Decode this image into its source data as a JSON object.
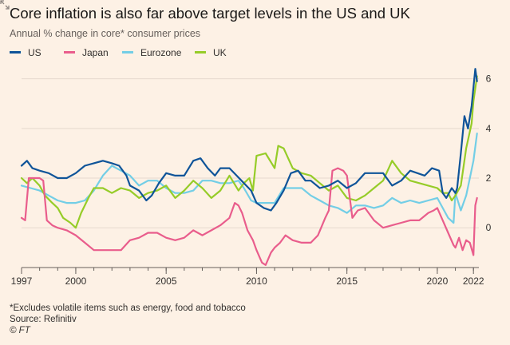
{
  "chart_data": {
    "type": "line",
    "title": "Core inflation is also far above target levels in the US and UK",
    "subtitle": "Annual % change in core* consumer prices",
    "xlabel": "",
    "ylabel": "",
    "xlim": [
      1997.0,
      2022.3
    ],
    "ylim": [
      -1.6,
      6.6
    ],
    "x_ticks": [
      1997,
      2000,
      2005,
      2010,
      2015,
      2020,
      2022
    ],
    "y_ticks": [
      0,
      2,
      4,
      6
    ],
    "y_axis_side": "right",
    "grid": true,
    "legend_position": "top-left",
    "series": [
      {
        "name": "US",
        "color": "#0f5499",
        "points": [
          [
            1997,
            2.5
          ],
          [
            1997.3,
            2.7
          ],
          [
            1997.6,
            2.4
          ],
          [
            1998,
            2.3
          ],
          [
            1998.5,
            2.2
          ],
          [
            1999,
            2.0
          ],
          [
            1999.5,
            2.0
          ],
          [
            2000,
            2.2
          ],
          [
            2000.5,
            2.5
          ],
          [
            2001,
            2.6
          ],
          [
            2001.5,
            2.7
          ],
          [
            2002,
            2.6
          ],
          [
            2002.4,
            2.5
          ],
          [
            2002.8,
            2.1
          ],
          [
            2003,
            1.7
          ],
          [
            2003.5,
            1.5
          ],
          [
            2003.9,
            1.1
          ],
          [
            2004.2,
            1.3
          ],
          [
            2004.6,
            1.8
          ],
          [
            2005,
            2.2
          ],
          [
            2005.5,
            2.1
          ],
          [
            2006,
            2.1
          ],
          [
            2006.5,
            2.7
          ],
          [
            2006.9,
            2.8
          ],
          [
            2007.3,
            2.4
          ],
          [
            2007.7,
            2.1
          ],
          [
            2008,
            2.4
          ],
          [
            2008.5,
            2.4
          ],
          [
            2008.9,
            2.1
          ],
          [
            2009.3,
            1.8
          ],
          [
            2009.7,
            1.5
          ],
          [
            2010,
            1.0
          ],
          [
            2010.4,
            0.8
          ],
          [
            2010.8,
            0.7
          ],
          [
            2011.1,
            1.0
          ],
          [
            2011.5,
            1.5
          ],
          [
            2011.9,
            2.2
          ],
          [
            2012.3,
            2.3
          ],
          [
            2012.7,
            1.9
          ],
          [
            2013,
            1.9
          ],
          [
            2013.5,
            1.6
          ],
          [
            2014,
            1.7
          ],
          [
            2014.5,
            1.9
          ],
          [
            2015,
            1.6
          ],
          [
            2015.5,
            1.8
          ],
          [
            2016,
            2.2
          ],
          [
            2016.5,
            2.2
          ],
          [
            2017,
            2.2
          ],
          [
            2017.5,
            1.7
          ],
          [
            2018,
            1.9
          ],
          [
            2018.5,
            2.3
          ],
          [
            2018.9,
            2.2
          ],
          [
            2019.3,
            2.1
          ],
          [
            2019.7,
            2.4
          ],
          [
            2020.1,
            2.3
          ],
          [
            2020.3,
            1.4
          ],
          [
            2020.5,
            1.2
          ],
          [
            2020.8,
            1.6
          ],
          [
            2021,
            1.4
          ],
          [
            2021.1,
            1.6
          ],
          [
            2021.3,
            3.0
          ],
          [
            2021.5,
            4.5
          ],
          [
            2021.7,
            4.0
          ],
          [
            2021.9,
            4.9
          ],
          [
            2022.1,
            6.4
          ],
          [
            2022.2,
            5.9
          ]
        ]
      },
      {
        "name": "Japan",
        "color": "#e95d8c",
        "points": [
          [
            1997,
            0.4
          ],
          [
            1997.2,
            0.3
          ],
          [
            1997.4,
            2.0
          ],
          [
            1997.7,
            2.0
          ],
          [
            1998,
            2.0
          ],
          [
            1998.2,
            1.9
          ],
          [
            1998.4,
            0.3
          ],
          [
            1998.7,
            0.1
          ],
          [
            1999,
            0.0
          ],
          [
            1999.5,
            -0.1
          ],
          [
            2000,
            -0.3
          ],
          [
            2000.5,
            -0.6
          ],
          [
            2001,
            -0.9
          ],
          [
            2001.5,
            -0.9
          ],
          [
            2002,
            -0.9
          ],
          [
            2002.5,
            -0.9
          ],
          [
            2003,
            -0.5
          ],
          [
            2003.5,
            -0.4
          ],
          [
            2004,
            -0.2
          ],
          [
            2004.5,
            -0.2
          ],
          [
            2005,
            -0.4
          ],
          [
            2005.5,
            -0.5
          ],
          [
            2006,
            -0.4
          ],
          [
            2006.5,
            -0.1
          ],
          [
            2007,
            -0.3
          ],
          [
            2007.5,
            -0.1
          ],
          [
            2008,
            0.1
          ],
          [
            2008.5,
            0.4
          ],
          [
            2008.8,
            1.0
          ],
          [
            2009,
            0.9
          ],
          [
            2009.2,
            0.6
          ],
          [
            2009.5,
            -0.1
          ],
          [
            2009.8,
            -0.5
          ],
          [
            2010,
            -0.9
          ],
          [
            2010.3,
            -1.4
          ],
          [
            2010.5,
            -1.5
          ],
          [
            2010.8,
            -1.0
          ],
          [
            2011,
            -0.8
          ],
          [
            2011.3,
            -0.6
          ],
          [
            2011.6,
            -0.3
          ],
          [
            2012,
            -0.5
          ],
          [
            2012.5,
            -0.6
          ],
          [
            2013,
            -0.6
          ],
          [
            2013.4,
            -0.3
          ],
          [
            2013.8,
            0.4
          ],
          [
            2014,
            0.7
          ],
          [
            2014.2,
            2.3
          ],
          [
            2014.5,
            2.4
          ],
          [
            2014.8,
            2.3
          ],
          [
            2015,
            2.1
          ],
          [
            2015.3,
            0.4
          ],
          [
            2015.6,
            0.7
          ],
          [
            2016,
            0.8
          ],
          [
            2016.5,
            0.3
          ],
          [
            2017,
            0.0
          ],
          [
            2017.5,
            0.1
          ],
          [
            2018,
            0.2
          ],
          [
            2018.5,
            0.3
          ],
          [
            2019,
            0.3
          ],
          [
            2019.5,
            0.6
          ],
          [
            2019.8,
            0.7
          ],
          [
            2020,
            0.8
          ],
          [
            2020.3,
            0.3
          ],
          [
            2020.6,
            -0.2
          ],
          [
            2020.9,
            -0.7
          ],
          [
            2021,
            -0.8
          ],
          [
            2021.2,
            -0.4
          ],
          [
            2021.4,
            -0.9
          ],
          [
            2021.6,
            -0.5
          ],
          [
            2021.8,
            -0.6
          ],
          [
            2022,
            -1.1
          ],
          [
            2022.1,
            0.9
          ],
          [
            2022.2,
            1.2
          ]
        ]
      },
      {
        "name": "Eurozone",
        "color": "#73cee6",
        "points": [
          [
            1997,
            1.7
          ],
          [
            1997.5,
            1.6
          ],
          [
            1998,
            1.5
          ],
          [
            1998.5,
            1.3
          ],
          [
            1999,
            1.1
          ],
          [
            1999.5,
            1.0
          ],
          [
            2000,
            1.0
          ],
          [
            2000.5,
            1.1
          ],
          [
            2001,
            1.5
          ],
          [
            2001.5,
            2.1
          ],
          [
            2002,
            2.5
          ],
          [
            2002.5,
            2.3
          ],
          [
            2003,
            2.1
          ],
          [
            2003.5,
            1.7
          ],
          [
            2004,
            1.9
          ],
          [
            2004.5,
            1.9
          ],
          [
            2005,
            1.6
          ],
          [
            2005.5,
            1.4
          ],
          [
            2006,
            1.4
          ],
          [
            2006.5,
            1.5
          ],
          [
            2007,
            1.9
          ],
          [
            2007.5,
            1.9
          ],
          [
            2008,
            1.8
          ],
          [
            2008.5,
            1.8
          ],
          [
            2009,
            1.9
          ],
          [
            2009.3,
            1.6
          ],
          [
            2009.7,
            1.1
          ],
          [
            2010,
            1.0
          ],
          [
            2010.5,
            1.0
          ],
          [
            2011,
            1.0
          ],
          [
            2011.5,
            1.6
          ],
          [
            2012,
            1.6
          ],
          [
            2012.5,
            1.6
          ],
          [
            2013,
            1.3
          ],
          [
            2013.5,
            1.1
          ],
          [
            2014,
            0.9
          ],
          [
            2014.5,
            0.8
          ],
          [
            2015,
            0.6
          ],
          [
            2015.5,
            0.9
          ],
          [
            2016,
            0.9
          ],
          [
            2016.5,
            0.8
          ],
          [
            2017,
            0.9
          ],
          [
            2017.5,
            1.2
          ],
          [
            2018,
            1.0
          ],
          [
            2018.5,
            1.1
          ],
          [
            2019,
            1.0
          ],
          [
            2019.5,
            1.1
          ],
          [
            2020,
            1.2
          ],
          [
            2020.3,
            0.8
          ],
          [
            2020.6,
            0.4
          ],
          [
            2020.9,
            0.2
          ],
          [
            2021,
            1.4
          ],
          [
            2021.3,
            0.7
          ],
          [
            2021.6,
            1.3
          ],
          [
            2021.8,
            2.0
          ],
          [
            2022,
            2.7
          ],
          [
            2022.2,
            3.8
          ]
        ]
      },
      {
        "name": "UK",
        "color": "#96cc28",
        "points": [
          [
            1997,
            2.0
          ],
          [
            1997.3,
            1.8
          ],
          [
            1997.6,
            2.0
          ],
          [
            1998,
            1.7
          ],
          [
            1998.3,
            1.3
          ],
          [
            1998.7,
            1.0
          ],
          [
            1999,
            0.8
          ],
          [
            1999.3,
            0.4
          ],
          [
            1999.7,
            0.2
          ],
          [
            2000,
            0.0
          ],
          [
            2000.3,
            0.6
          ],
          [
            2000.7,
            1.2
          ],
          [
            2001,
            1.6
          ],
          [
            2001.5,
            1.6
          ],
          [
            2002,
            1.4
          ],
          [
            2002.5,
            1.6
          ],
          [
            2003,
            1.5
          ],
          [
            2003.5,
            1.2
          ],
          [
            2004,
            1.4
          ],
          [
            2004.5,
            1.5
          ],
          [
            2005,
            1.7
          ],
          [
            2005.5,
            1.2
          ],
          [
            2006,
            1.5
          ],
          [
            2006.5,
            1.9
          ],
          [
            2007,
            1.6
          ],
          [
            2007.5,
            1.2
          ],
          [
            2008,
            1.5
          ],
          [
            2008.5,
            2.1
          ],
          [
            2009,
            1.5
          ],
          [
            2009.3,
            1.8
          ],
          [
            2009.6,
            2.0
          ],
          [
            2009.8,
            1.5
          ],
          [
            2010,
            2.9
          ],
          [
            2010.5,
            3.0
          ],
          [
            2011,
            2.4
          ],
          [
            2011.2,
            3.3
          ],
          [
            2011.5,
            3.2
          ],
          [
            2012,
            2.4
          ],
          [
            2012.5,
            2.2
          ],
          [
            2013,
            2.1
          ],
          [
            2013.5,
            1.8
          ],
          [
            2014,
            1.5
          ],
          [
            2014.5,
            1.7
          ],
          [
            2015,
            1.2
          ],
          [
            2015.5,
            1.1
          ],
          [
            2016,
            1.3
          ],
          [
            2016.5,
            1.6
          ],
          [
            2017,
            1.9
          ],
          [
            2017.5,
            2.7
          ],
          [
            2018,
            2.2
          ],
          [
            2018.5,
            1.9
          ],
          [
            2019,
            1.8
          ],
          [
            2019.5,
            1.7
          ],
          [
            2020,
            1.6
          ],
          [
            2020.3,
            1.4
          ],
          [
            2020.6,
            1.4
          ],
          [
            2020.8,
            1.1
          ],
          [
            2021,
            1.3
          ],
          [
            2021.3,
            1.7
          ],
          [
            2021.6,
            3.2
          ],
          [
            2021.9,
            4.2
          ],
          [
            2022,
            5.1
          ],
          [
            2022.2,
            6.1
          ]
        ]
      }
    ]
  },
  "footnote": "*Excludes volatile items such as energy, food and tobacco",
  "source": "Source: Refinitiv",
  "credit": "© FT"
}
